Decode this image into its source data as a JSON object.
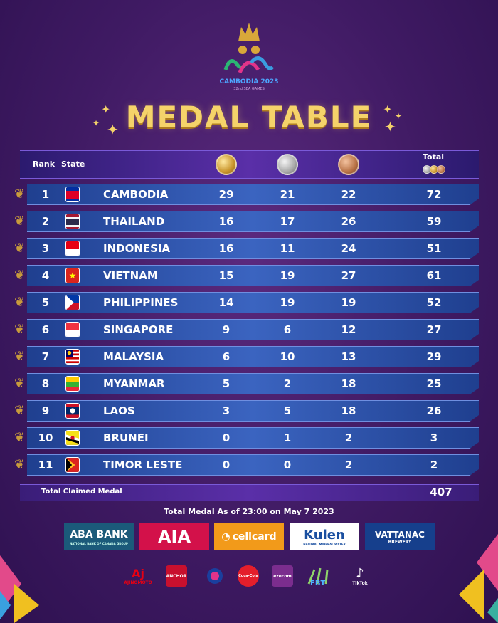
{
  "logo": {
    "name": "CAMBODIA 2023",
    "subtitle": "32nd SEA GAMES"
  },
  "title": "MEDAL TABLE",
  "header": {
    "rank": "Rank",
    "state": "State",
    "total": "Total"
  },
  "rows": [
    {
      "rank": "1",
      "country": "CAMBODIA",
      "gold": "29",
      "silver": "21",
      "bronze": "22",
      "total": "72"
    },
    {
      "rank": "2",
      "country": "THAILAND",
      "gold": "16",
      "silver": "17",
      "bronze": "26",
      "total": "59"
    },
    {
      "rank": "3",
      "country": "INDONESIA",
      "gold": "16",
      "silver": "11",
      "bronze": "24",
      "total": "51"
    },
    {
      "rank": "4",
      "country": "VIETNAM",
      "gold": "15",
      "silver": "19",
      "bronze": "27",
      "total": "61"
    },
    {
      "rank": "5",
      "country": "PHILIPPINES",
      "gold": "14",
      "silver": "19",
      "bronze": "19",
      "total": "52"
    },
    {
      "rank": "6",
      "country": "SINGAPORE",
      "gold": "9",
      "silver": "6",
      "bronze": "12",
      "total": "27"
    },
    {
      "rank": "7",
      "country": "MALAYSIA",
      "gold": "6",
      "silver": "10",
      "bronze": "13",
      "total": "29"
    },
    {
      "rank": "8",
      "country": "MYANMAR",
      "gold": "5",
      "silver": "2",
      "bronze": "18",
      "total": "25"
    },
    {
      "rank": "9",
      "country": "LAOS",
      "gold": "3",
      "silver": "5",
      "bronze": "18",
      "total": "26"
    },
    {
      "rank": "10",
      "country": "BRUNEI",
      "gold": "0",
      "silver": "1",
      "bronze": "2",
      "total": "3"
    },
    {
      "rank": "11",
      "country": "TIMOR LESTE",
      "gold": "0",
      "silver": "0",
      "bronze": "2",
      "total": "2"
    }
  ],
  "total_claimed": {
    "label": "Total Claimed Medal",
    "value": "407"
  },
  "as_of": "Total Medal As of 23:00 on May 7 2023",
  "sponsors": {
    "aba": "ABA BANK",
    "aba_sub": "NATIONAL BANK OF CANADA GROUP",
    "aia": "AIA",
    "cellcard": "cellcard",
    "kulen": "Kulen",
    "kulen_sub": "NATURAL MINERAL WATER",
    "vattanac": "VATTANAC",
    "vattanac_sub": "BREWERY"
  },
  "small_sponsors": [
    "AJINOMOTO",
    "ANCHOR",
    "",
    "Coca-Cola",
    "ezecom",
    "",
    "TikTok"
  ],
  "colors": {
    "gold": "#f5d36a",
    "row": "#3b64c0",
    "bg": "#3f1a63"
  }
}
